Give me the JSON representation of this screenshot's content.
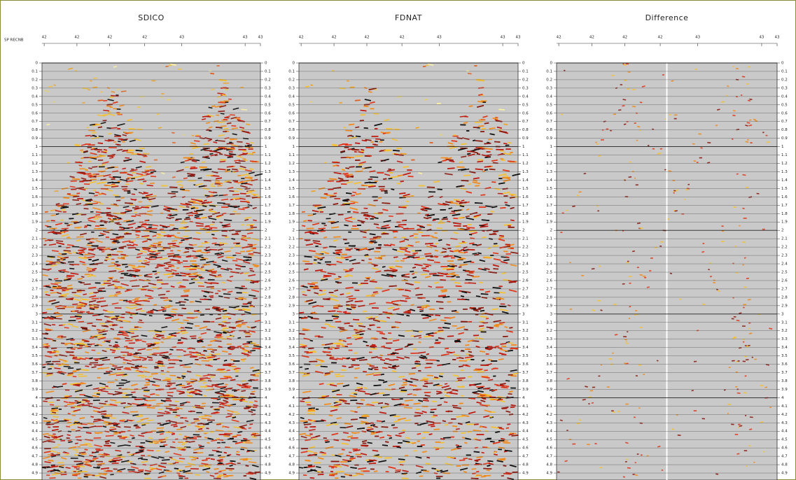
{
  "axis_label": "SP RECNB",
  "panels": [
    {
      "title": "SDICO",
      "top_labels": [
        "42",
        "42",
        "42",
        "42",
        "43",
        "43",
        "43"
      ]
    },
    {
      "title": "FDNAT",
      "top_labels": [
        "42",
        "42",
        "42",
        "42",
        "43",
        "43",
        "43"
      ]
    },
    {
      "title": "Difference",
      "top_labels": [
        "42",
        "42",
        "42",
        "42",
        "43",
        "43",
        "43"
      ]
    }
  ],
  "time_labels": [
    0,
    0.1,
    0.2,
    0.3,
    0.4,
    0.5,
    0.6,
    0.7,
    0.8,
    0.9,
    1,
    1.1,
    1.2,
    1.3,
    1.4,
    1.5,
    1.6,
    1.7,
    1.8,
    1.9,
    2,
    2.1,
    2.2,
    2.3,
    2.4,
    2.5,
    2.6,
    2.7,
    2.8,
    2.9,
    3,
    3.1,
    3.2,
    3.3,
    3.4,
    3.5,
    3.6,
    3.7,
    3.8,
    3.9,
    4,
    4.1,
    4.2,
    4.3,
    4.4,
    4.5,
    4.6,
    4.7,
    4.8,
    4.9
  ]
}
